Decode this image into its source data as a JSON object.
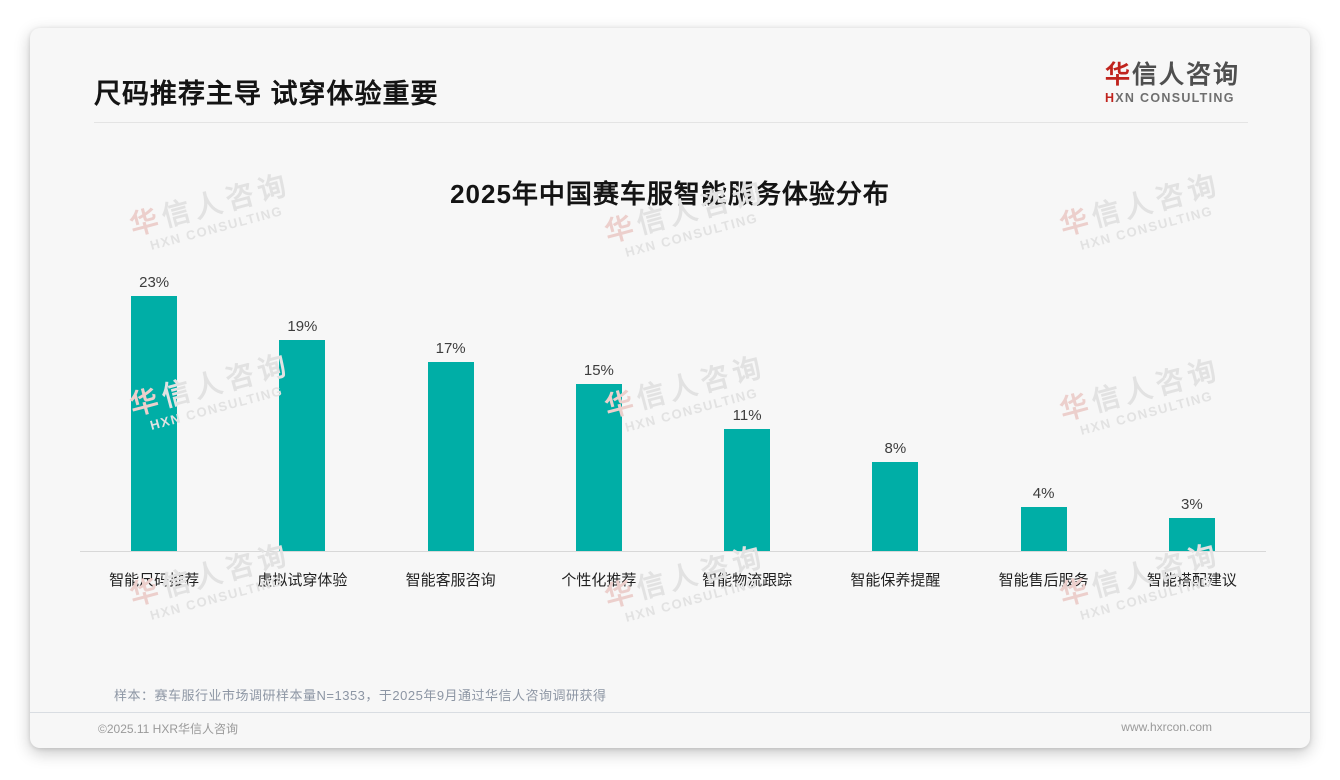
{
  "page": {
    "title": "尺码推荐主导 试穿体验重要",
    "note": "样本：赛车服行业市场调研样本量N=1353，于2025年9月通过华信人咨询调研获得",
    "footer": {
      "copyright": "©2025.11 HXR华信人咨询",
      "website": "www.hxrcon.com"
    }
  },
  "logo": {
    "brand_first": "华",
    "brand_rest": "信人咨询",
    "subtitle_first": "H",
    "subtitle_rest": "XN CONSULTING"
  },
  "watermark": {
    "first": "华",
    "rest": "信人咨询",
    "line2": "HXN CONSULTING"
  },
  "colors": {
    "bar": "#00AEA6",
    "accent_red": "#C0231D",
    "card_background": "#F7F7F7"
  },
  "chart_data": {
    "type": "bar",
    "title": "2025年中国赛车服智能服务体验分布",
    "categories": [
      "智能尺码推荐",
      "虚拟试穿体验",
      "智能客服咨询",
      "个性化推荐",
      "智能物流跟踪",
      "智能保养提醒",
      "智能售后服务",
      "智能搭配建议"
    ],
    "values": [
      23,
      19,
      17,
      15,
      11,
      8,
      4,
      3
    ],
    "unit": "%",
    "value_labels": true,
    "xlabel": "",
    "ylabel": "",
    "ylim": [
      0,
      25
    ],
    "grid": false,
    "legend": "none",
    "bar_color": "#00AEA6"
  }
}
